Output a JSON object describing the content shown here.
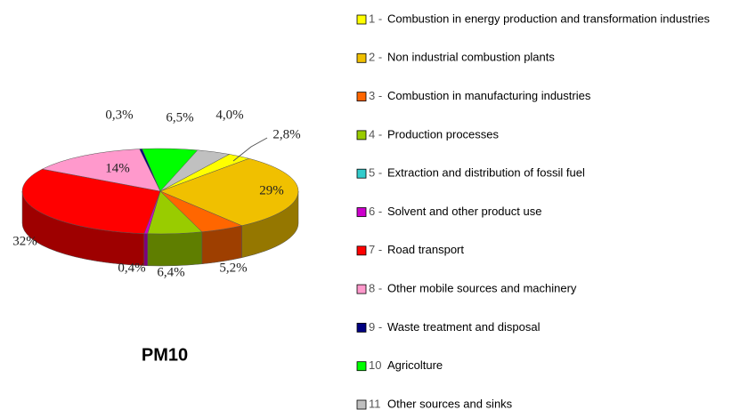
{
  "chart_data": {
    "type": "pie3d",
    "title": "PM10",
    "categories": [
      "Combustion in energy production and transformation industries",
      "Non industrial combustion plants",
      "Combustion in manufacturing industries",
      "Production processes",
      "Extraction and distribution of fossil fuel",
      "Solvent and other product use",
      "Road transport",
      "Other mobile sources and machinery",
      "Waste treatment and disposal",
      "Agricolture",
      "Other sources and sinks"
    ],
    "legend_numbers": [
      "1 -",
      "2 -",
      "3 -",
      "4 -",
      "5 -",
      "6 -",
      "7 -",
      "8 -",
      "9 -",
      "10",
      "11"
    ],
    "values": [
      2.8,
      29,
      5.2,
      6.4,
      0,
      0.4,
      32,
      14,
      0.3,
      6.5,
      4.0
    ],
    "value_labels": [
      "2,8%",
      "29%",
      "5,2%",
      "6,4%",
      null,
      "0,4%",
      "32%",
      "14%",
      "0,3%",
      "6,5%",
      "4,0%"
    ],
    "colors": [
      "#ffff00",
      "#f0c000",
      "#ff6600",
      "#99cc00",
      "#33cccc",
      "#cc00cc",
      "#ff0000",
      "#ff99cc",
      "#000080",
      "#00ff00",
      "#c0c0c0"
    ]
  }
}
